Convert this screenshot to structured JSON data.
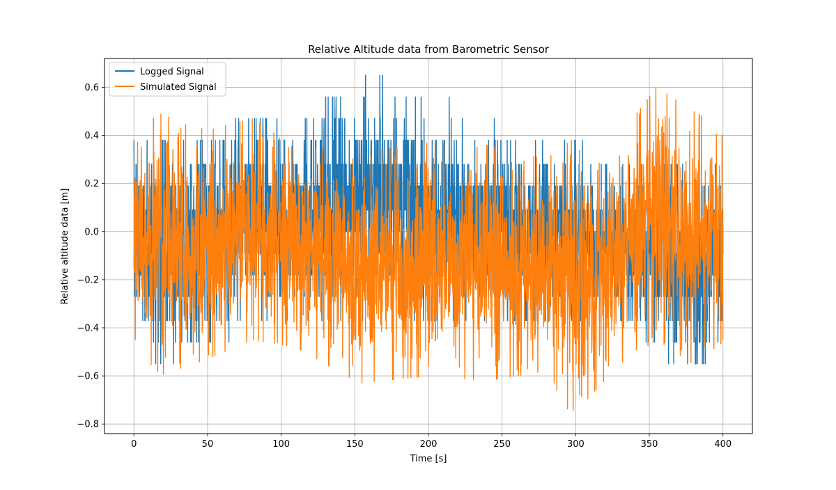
{
  "chart_data": {
    "type": "line",
    "title": "Relative Altitude data from Barometric Sensor",
    "xlabel": "Time [s]",
    "ylabel": "Relative altitude data [m]",
    "xlim": [
      -20,
      420
    ],
    "ylim": [
      -0.84,
      0.72
    ],
    "x_ticks": [
      0,
      50,
      100,
      150,
      200,
      250,
      300,
      350,
      400
    ],
    "x_tick_labels": [
      "0",
      "50",
      "100",
      "150",
      "200",
      "250",
      "300",
      "350",
      "400"
    ],
    "y_ticks": [
      -0.8,
      -0.6,
      -0.4,
      -0.2,
      0.0,
      0.2,
      0.4,
      0.6
    ],
    "y_tick_labels": [
      "−0.8",
      "−0.6",
      "−0.4",
      "−0.2",
      "0.0",
      "0.2",
      "0.4",
      "0.6"
    ],
    "grid": true,
    "legend_position": "top-left",
    "series": [
      {
        "name": "Logged Signal",
        "color": "#1f77b4",
        "x_range": [
          0,
          400
        ],
        "levels": [
          -0.55,
          -0.46,
          -0.37,
          -0.27,
          -0.18,
          -0.09,
          0.0,
          0.09,
          0.19,
          0.28,
          0.38,
          0.47,
          0.56,
          0.65
        ],
        "envelope": {
          "t": [
            0,
            20,
            50,
            80,
            110,
            140,
            168,
            200,
            230,
            260,
            290,
            320,
            350,
            375,
            400
          ],
          "upper": [
            0.38,
            0.38,
            0.38,
            0.47,
            0.47,
            0.56,
            0.65,
            0.56,
            0.47,
            0.38,
            0.38,
            0.28,
            0.28,
            0.28,
            0.28
          ],
          "lower": [
            -0.46,
            -0.55,
            -0.46,
            -0.37,
            -0.37,
            -0.37,
            -0.37,
            -0.37,
            -0.37,
            -0.37,
            -0.37,
            -0.37,
            -0.46,
            -0.64,
            -0.46
          ]
        }
      },
      {
        "name": "Simulated Signal",
        "color": "#ff7f0e",
        "x_range": [
          0,
          400
        ],
        "envelope": {
          "t": [
            0,
            17,
            50,
            80,
            110,
            153,
            200,
            240,
            280,
            297,
            330,
            355,
            380,
            400
          ],
          "upper": [
            0.41,
            0.49,
            0.42,
            0.47,
            0.35,
            0.33,
            0.37,
            0.36,
            0.3,
            0.38,
            0.4,
            0.6,
            0.5,
            0.43
          ],
          "lower": [
            -0.45,
            -0.6,
            -0.53,
            -0.45,
            -0.48,
            -0.63,
            -0.6,
            -0.62,
            -0.58,
            -0.77,
            -0.55,
            -0.45,
            -0.55,
            -0.46
          ]
        }
      }
    ]
  }
}
